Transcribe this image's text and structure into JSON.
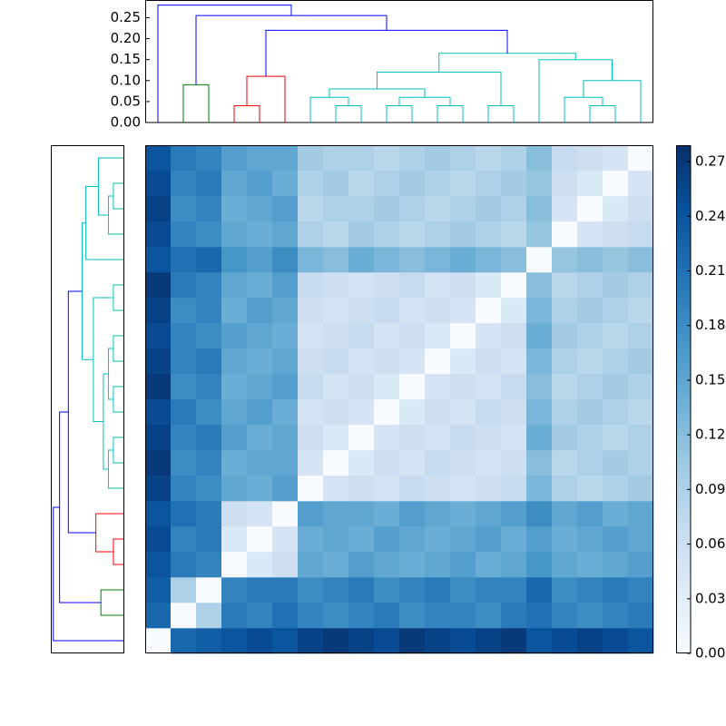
{
  "chart_data": {
    "type": "clustermap",
    "colormap": "Blues",
    "matrix": [
      [
        0,
        0.22,
        0.23,
        0.24,
        0.25,
        0.24,
        0.26,
        0.27,
        0.26,
        0.25,
        0.27,
        0.26,
        0.25,
        0.26,
        0.27,
        0.24,
        0.25,
        0.26,
        0.25,
        0.24
      ],
      [
        0.22,
        0,
        0.09,
        0.2,
        0.19,
        0.21,
        0.19,
        0.18,
        0.19,
        0.2,
        0.18,
        0.19,
        0.19,
        0.18,
        0.2,
        0.21,
        0.19,
        0.18,
        0.19,
        0.2
      ],
      [
        0.23,
        0.09,
        0,
        0.19,
        0.2,
        0.2,
        0.18,
        0.19,
        0.2,
        0.18,
        0.19,
        0.2,
        0.18,
        0.19,
        0.19,
        0.22,
        0.18,
        0.19,
        0.2,
        0.19
      ],
      [
        0.24,
        0.2,
        0.19,
        0,
        0.04,
        0.06,
        0.15,
        0.14,
        0.16,
        0.15,
        0.14,
        0.15,
        0.16,
        0.14,
        0.15,
        0.17,
        0.15,
        0.14,
        0.15,
        0.16
      ],
      [
        0.25,
        0.19,
        0.2,
        0.04,
        0,
        0.05,
        0.14,
        0.15,
        0.14,
        0.16,
        0.15,
        0.14,
        0.15,
        0.16,
        0.14,
        0.16,
        0.14,
        0.15,
        0.16,
        0.15
      ],
      [
        0.24,
        0.21,
        0.2,
        0.06,
        0.05,
        0,
        0.16,
        0.15,
        0.15,
        0.14,
        0.16,
        0.15,
        0.14,
        0.15,
        0.16,
        0.18,
        0.15,
        0.16,
        0.14,
        0.15
      ],
      [
        0.26,
        0.19,
        0.18,
        0.15,
        0.14,
        0.16,
        0,
        0.05,
        0.06,
        0.05,
        0.07,
        0.06,
        0.05,
        0.06,
        0.07,
        0.13,
        0.09,
        0.08,
        0.09,
        0.1
      ],
      [
        0.27,
        0.18,
        0.19,
        0.14,
        0.15,
        0.15,
        0.05,
        0,
        0.04,
        0.06,
        0.05,
        0.07,
        0.06,
        0.05,
        0.06,
        0.12,
        0.08,
        0.09,
        0.1,
        0.09
      ],
      [
        0.26,
        0.19,
        0.2,
        0.16,
        0.14,
        0.15,
        0.06,
        0.04,
        0,
        0.05,
        0.06,
        0.05,
        0.07,
        0.06,
        0.05,
        0.14,
        0.1,
        0.09,
        0.08,
        0.09
      ],
      [
        0.25,
        0.2,
        0.18,
        0.15,
        0.16,
        0.14,
        0.05,
        0.06,
        0.05,
        0,
        0.04,
        0.06,
        0.05,
        0.07,
        0.06,
        0.13,
        0.09,
        0.1,
        0.09,
        0.08
      ],
      [
        0.27,
        0.18,
        0.19,
        0.14,
        0.15,
        0.16,
        0.07,
        0.05,
        0.06,
        0.04,
        0,
        0.05,
        0.06,
        0.05,
        0.07,
        0.12,
        0.08,
        0.09,
        0.1,
        0.09
      ],
      [
        0.26,
        0.19,
        0.2,
        0.15,
        0.14,
        0.15,
        0.06,
        0.07,
        0.05,
        0.06,
        0.05,
        0,
        0.04,
        0.06,
        0.05,
        0.13,
        0.09,
        0.08,
        0.09,
        0.1
      ],
      [
        0.25,
        0.19,
        0.18,
        0.16,
        0.15,
        0.14,
        0.05,
        0.06,
        0.07,
        0.05,
        0.06,
        0.04,
        0,
        0.05,
        0.06,
        0.14,
        0.1,
        0.09,
        0.08,
        0.09
      ],
      [
        0.26,
        0.18,
        0.19,
        0.14,
        0.16,
        0.15,
        0.06,
        0.05,
        0.06,
        0.07,
        0.05,
        0.06,
        0.05,
        0,
        0.04,
        0.13,
        0.09,
        0.1,
        0.09,
        0.08
      ],
      [
        0.27,
        0.2,
        0.19,
        0.15,
        0.14,
        0.16,
        0.07,
        0.06,
        0.05,
        0.06,
        0.07,
        0.05,
        0.06,
        0.04,
        0,
        0.12,
        0.08,
        0.09,
        0.1,
        0.09
      ],
      [
        0.24,
        0.21,
        0.22,
        0.17,
        0.16,
        0.18,
        0.13,
        0.12,
        0.14,
        0.13,
        0.12,
        0.13,
        0.14,
        0.13,
        0.12,
        0,
        0.11,
        0.12,
        0.11,
        0.12
      ],
      [
        0.25,
        0.19,
        0.18,
        0.15,
        0.14,
        0.15,
        0.09,
        0.08,
        0.1,
        0.09,
        0.08,
        0.09,
        0.1,
        0.09,
        0.08,
        0.11,
        0,
        0.05,
        0.06,
        0.07
      ],
      [
        0.26,
        0.18,
        0.19,
        0.14,
        0.15,
        0.16,
        0.08,
        0.09,
        0.09,
        0.1,
        0.09,
        0.08,
        0.09,
        0.1,
        0.09,
        0.12,
        0.05,
        0,
        0.04,
        0.06
      ],
      [
        0.25,
        0.19,
        0.2,
        0.15,
        0.16,
        0.14,
        0.09,
        0.1,
        0.08,
        0.09,
        0.1,
        0.09,
        0.08,
        0.09,
        0.1,
        0.11,
        0.06,
        0.04,
        0,
        0.05
      ],
      [
        0.24,
        0.2,
        0.19,
        0.16,
        0.15,
        0.15,
        0.1,
        0.09,
        0.09,
        0.08,
        0.09,
        0.1,
        0.09,
        0.08,
        0.09,
        0.12,
        0.07,
        0.06,
        0.05,
        0
      ]
    ],
    "linkage": [
      {
        "children": [
          3,
          4
        ],
        "height": 0.04,
        "color": "#ff0000"
      },
      {
        "children": [
          20,
          5
        ],
        "height": 0.11,
        "color": "#ff0000"
      },
      {
        "children": [
          1,
          2
        ],
        "height": 0.09,
        "color": "#008000"
      },
      {
        "children": [
          7,
          8
        ],
        "height": 0.04,
        "color": "#00bfbf"
      },
      {
        "children": [
          9,
          10
        ],
        "height": 0.04,
        "color": "#00bfbf"
      },
      {
        "children": [
          11,
          12
        ],
        "height": 0.04,
        "color": "#00bfbf"
      },
      {
        "children": [
          13,
          14
        ],
        "height": 0.04,
        "color": "#00bfbf"
      },
      {
        "children": [
          6,
          23
        ],
        "height": 0.06,
        "color": "#00bfbf"
      },
      {
        "children": [
          24,
          25
        ],
        "height": 0.06,
        "color": "#00bfbf"
      },
      {
        "children": [
          27,
          28
        ],
        "height": 0.08,
        "color": "#00bfbf"
      },
      {
        "children": [
          29,
          26
        ],
        "height": 0.12,
        "color": "#00bfbf"
      },
      {
        "children": [
          17,
          18
        ],
        "height": 0.04,
        "color": "#00bfbf"
      },
      {
        "children": [
          16,
          31
        ],
        "height": 0.06,
        "color": "#00bfbf"
      },
      {
        "children": [
          32,
          19
        ],
        "height": 0.1,
        "color": "#00bfbf"
      },
      {
        "children": [
          15,
          33
        ],
        "height": 0.15,
        "color": "#00bfbf"
      },
      {
        "children": [
          30,
          34
        ],
        "height": 0.165,
        "color": "#00bfbf"
      },
      {
        "children": [
          21,
          35
        ],
        "height": 0.22,
        "color": "#0000ff"
      },
      {
        "children": [
          22,
          36
        ],
        "height": 0.255,
        "color": "#0000ff"
      },
      {
        "children": [
          0,
          37
        ],
        "height": 0.28,
        "color": "#0000ff"
      }
    ],
    "dendrogram_ylim": [
      0,
      0.29
    ],
    "dendrogram_yticks": [
      {
        "value": 0,
        "label": "0.00"
      },
      {
        "value": 0.05,
        "label": "0.05"
      },
      {
        "value": 0.1,
        "label": "0.10"
      },
      {
        "value": 0.15,
        "label": "0.15"
      },
      {
        "value": 0.2,
        "label": "0.20"
      },
      {
        "value": 0.25,
        "label": "0.25"
      }
    ],
    "colorbar_lim": [
      0,
      0.279
    ],
    "colorbar_ticks": [
      {
        "value": 0,
        "label": "0.00"
      },
      {
        "value": 0.03,
        "label": "0.03"
      },
      {
        "value": 0.06,
        "label": "0.06"
      },
      {
        "value": 0.09,
        "label": "0.09"
      },
      {
        "value": 0.12,
        "label": "0.12"
      },
      {
        "value": 0.15,
        "label": "0.15"
      },
      {
        "value": 0.18,
        "label": "0.18"
      },
      {
        "value": 0.21,
        "label": "0.21"
      },
      {
        "value": 0.24,
        "label": "0.24"
      },
      {
        "value": 0.27,
        "label": "0.27"
      }
    ]
  }
}
